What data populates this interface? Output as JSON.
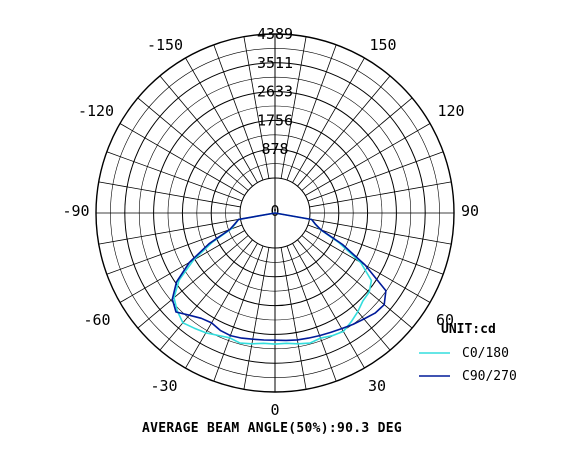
{
  "chart_data": {
    "type": "polar-line",
    "unit_label": "UNIT:cd",
    "caption": "AVERAGE BEAM ANGLE(50%):90.3 DEG",
    "radial_ticks": [
      878,
      1756,
      2633,
      3511,
      4389
    ],
    "radial_max": 4389,
    "angle_labels": [
      "0",
      "30",
      "60",
      "90",
      "120",
      "150",
      "-150",
      "-120",
      "-90",
      "-60",
      "-30"
    ],
    "grid": true,
    "legend_position": "bottom-right",
    "series": [
      {
        "name": "C0/180",
        "color": "#33dddd",
        "points": [
          [
            -90,
            0
          ],
          [
            -80,
            60
          ],
          [
            -75,
            180
          ],
          [
            -70,
            350
          ],
          [
            -65,
            1050
          ],
          [
            -60,
            1800
          ],
          [
            -55,
            2500
          ],
          [
            -50,
            2950
          ],
          [
            -45,
            3150
          ],
          [
            -40,
            3300
          ],
          [
            -35,
            3220
          ],
          [
            -30,
            3150
          ],
          [
            -25,
            3050
          ],
          [
            -20,
            2980
          ],
          [
            -15,
            3040
          ],
          [
            -10,
            2980
          ],
          [
            -5,
            2920
          ],
          [
            0,
            2930
          ],
          [
            5,
            2920
          ],
          [
            10,
            2980
          ],
          [
            15,
            3040
          ],
          [
            20,
            2990
          ],
          [
            25,
            3060
          ],
          [
            30,
            3100
          ],
          [
            35,
            2980
          ],
          [
            40,
            2860
          ],
          [
            45,
            2720
          ],
          [
            50,
            2680
          ],
          [
            55,
            2520
          ],
          [
            60,
            1950
          ],
          [
            65,
            1100
          ],
          [
            70,
            400
          ],
          [
            75,
            190
          ],
          [
            80,
            70
          ],
          [
            90,
            0
          ]
        ]
      },
      {
        "name": "C90/270",
        "color": "#001a99",
        "points": [
          [
            -90,
            0
          ],
          [
            -80,
            60
          ],
          [
            -75,
            200
          ],
          [
            -70,
            400
          ],
          [
            -65,
            1150
          ],
          [
            -60,
            1950
          ],
          [
            -55,
            2600
          ],
          [
            -50,
            3020
          ],
          [
            -45,
            3200
          ],
          [
            -40,
            3000
          ],
          [
            -35,
            2850
          ],
          [
            -30,
            2800
          ],
          [
            -25,
            2880
          ],
          [
            -20,
            2910
          ],
          [
            -15,
            2880
          ],
          [
            -10,
            2840
          ],
          [
            -5,
            2820
          ],
          [
            0,
            2810
          ],
          [
            5,
            2830
          ],
          [
            10,
            2860
          ],
          [
            15,
            2880
          ],
          [
            20,
            2910
          ],
          [
            25,
            2950
          ],
          [
            30,
            3000
          ],
          [
            35,
            3080
          ],
          [
            40,
            3150
          ],
          [
            45,
            3250
          ],
          [
            50,
            3280
          ],
          [
            55,
            3060
          ],
          [
            60,
            2100
          ],
          [
            65,
            1200
          ],
          [
            70,
            420
          ],
          [
            75,
            200
          ],
          [
            80,
            70
          ],
          [
            90,
            0
          ]
        ]
      }
    ]
  }
}
